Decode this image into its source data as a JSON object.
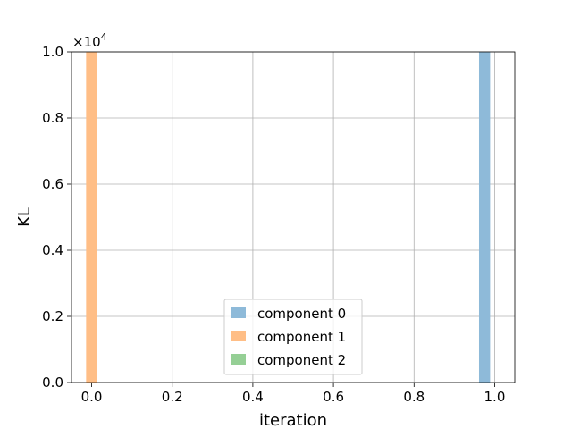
{
  "chart_data": {
    "type": "bar",
    "xlabel": "iteration",
    "ylabel": "KL",
    "y_multiplier_text": "×10",
    "y_multiplier_exp": "4",
    "xlim": [
      -0.05,
      1.05
    ],
    "ylim": [
      0,
      1.0
    ],
    "xticks": [
      0.0,
      0.2,
      0.4,
      0.6,
      0.8,
      1.0
    ],
    "xtick_labels": [
      "0.0",
      "0.2",
      "0.4",
      "0.6",
      "0.8",
      "1.0"
    ],
    "yticks": [
      0.0,
      0.2,
      0.4,
      0.6,
      0.8,
      1.0
    ],
    "ytick_labels": [
      "0.0",
      "0.2",
      "0.4",
      "0.6",
      "0.8",
      "1.0"
    ],
    "bar_width": 0.0275,
    "grid": true,
    "legend_position": "bottom-center",
    "series": [
      {
        "name": "component 0",
        "color": "#8ebad9",
        "bars": [
          {
            "x": 0.975,
            "value": 1.0
          }
        ]
      },
      {
        "name": "component 1",
        "color": "#ffbe86",
        "bars": [
          {
            "x": 0.0,
            "value": 1.0
          }
        ]
      },
      {
        "name": "component 2",
        "color": "#95cf95",
        "bars": []
      }
    ]
  }
}
